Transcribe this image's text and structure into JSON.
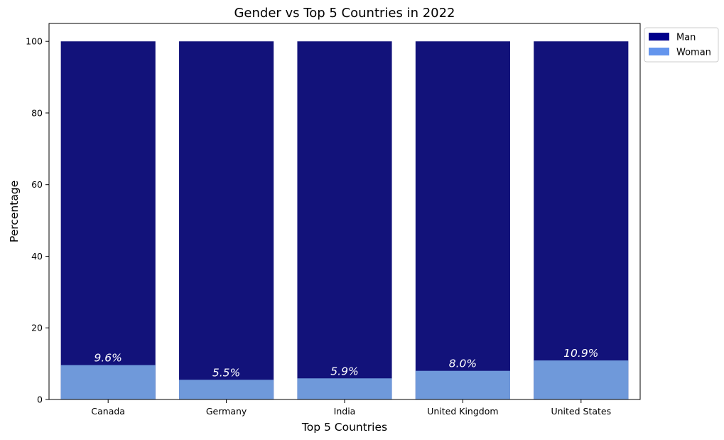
{
  "chart_data": {
    "type": "bar",
    "stacked": "overlay",
    "title": "Gender vs Top 5 Countries in 2022",
    "xlabel": "Top 5 Countries",
    "ylabel": "Percentage",
    "categories": [
      "Canada",
      "Germany",
      "India",
      "United Kingdom",
      "United States"
    ],
    "series": [
      {
        "name": "Man",
        "values": [
          100,
          100,
          100,
          100,
          100
        ],
        "color": "#12127a",
        "legend_color": "#00008b"
      },
      {
        "name": "Woman",
        "values": [
          9.6,
          5.5,
          5.9,
          8.0,
          10.9
        ],
        "color": "#6f99da",
        "legend_color": "#6495ed"
      }
    ],
    "data_labels": [
      "9.6%",
      "5.5%",
      "5.9%",
      "8.0%",
      "10.9%"
    ],
    "ylim": [
      0,
      105
    ],
    "yticks": [
      0,
      20,
      40,
      60,
      80,
      100
    ],
    "grid": false,
    "legend_position": "outside top-right"
  }
}
